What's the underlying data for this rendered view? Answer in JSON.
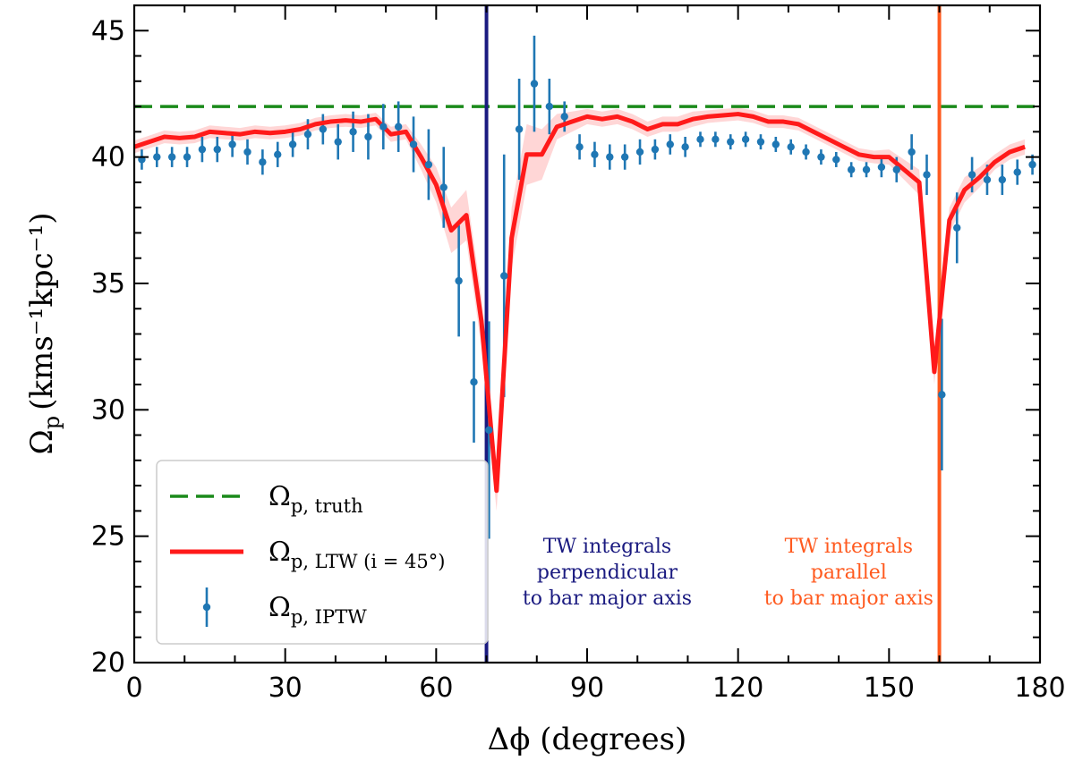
{
  "chart_data": {
    "type": "line",
    "xlabel": "Δϕ (degrees)",
    "ylabel": "Ω",
    "ylabel_sub": "p",
    "ylabel_units": "(kms⁻¹kpc⁻¹)",
    "xlim": [
      0,
      180
    ],
    "ylim": [
      20,
      46
    ],
    "xticks": [
      0,
      30,
      60,
      90,
      120,
      150,
      180
    ],
    "yticks": [
      20,
      25,
      30,
      35,
      40,
      45
    ],
    "xtick_labels": [
      "0",
      "30",
      "60",
      "90",
      "120",
      "150",
      "180"
    ],
    "ytick_labels": [
      "20",
      "25",
      "30",
      "35",
      "40",
      "45"
    ],
    "grid": false,
    "legend_position": "lower-left",
    "reference_lines": [
      {
        "name": "Ωp, truth",
        "orientation": "horizontal",
        "value": 42,
        "color": "#1a8a1a",
        "style": "dashed"
      },
      {
        "name": "perpendicular",
        "orientation": "vertical",
        "value": 70,
        "color": "#1a1a80",
        "style": "solid"
      },
      {
        "name": "parallel",
        "orientation": "vertical",
        "value": 160,
        "color": "#ff5a1f",
        "style": "solid"
      }
    ],
    "series": [
      {
        "name": "Ωp, LTW (i = 45°)",
        "color": "#ff1a1a",
        "band_color": "#ffd6d6",
        "x": [
          0,
          3,
          6,
          9,
          12,
          15,
          18,
          21,
          24,
          27,
          30,
          33,
          36,
          39,
          42,
          45,
          48,
          51,
          54,
          57,
          60,
          63,
          66,
          69,
          72,
          75,
          78,
          81,
          84,
          87,
          90,
          93,
          96,
          99,
          102,
          105,
          108,
          111,
          114,
          117,
          120,
          123,
          126,
          129,
          132,
          135,
          138,
          141,
          144,
          147,
          150,
          153,
          156,
          159,
          162,
          165,
          168,
          171,
          174,
          177
        ],
        "y": [
          40.4,
          40.6,
          40.8,
          40.75,
          40.8,
          41.0,
          40.95,
          40.9,
          41.0,
          40.95,
          41.0,
          41.1,
          41.3,
          41.4,
          41.45,
          41.4,
          41.5,
          40.9,
          41.0,
          40.0,
          38.9,
          37.1,
          37.7,
          33.5,
          26.8,
          36.8,
          40.1,
          40.1,
          41.2,
          41.4,
          41.6,
          41.5,
          41.6,
          41.4,
          41.1,
          41.3,
          41.3,
          41.5,
          41.6,
          41.65,
          41.7,
          41.6,
          41.4,
          41.4,
          41.3,
          41.0,
          40.7,
          40.4,
          40.1,
          40.0,
          40.0,
          39.5,
          39.0,
          31.5,
          37.5,
          38.7,
          39.2,
          39.8,
          40.2,
          40.4
        ],
        "band_halfwidth": [
          0.25,
          0.25,
          0.25,
          0.25,
          0.25,
          0.25,
          0.25,
          0.25,
          0.25,
          0.25,
          0.25,
          0.25,
          0.25,
          0.25,
          0.25,
          0.25,
          0.25,
          0.3,
          0.3,
          0.5,
          0.7,
          0.9,
          1.0,
          1.0,
          0.8,
          1.2,
          1.2,
          1.0,
          0.5,
          0.4,
          0.3,
          0.3,
          0.3,
          0.3,
          0.3,
          0.3,
          0.3,
          0.3,
          0.25,
          0.25,
          0.25,
          0.25,
          0.25,
          0.25,
          0.25,
          0.25,
          0.25,
          0.25,
          0.25,
          0.25,
          0.3,
          0.4,
          0.5,
          0.5,
          0.5,
          0.5,
          0.4,
          0.3,
          0.3,
          0.3
        ]
      },
      {
        "name": "Ωp, IPTW",
        "color": "#1f77b4",
        "x": [
          1.5,
          4.5,
          7.5,
          10.5,
          13.5,
          16.5,
          19.5,
          22.5,
          25.5,
          28.5,
          31.5,
          34.5,
          37.5,
          40.5,
          43.5,
          46.5,
          49.5,
          52.5,
          55.5,
          58.5,
          61.5,
          64.5,
          67.5,
          70.5,
          73.5,
          76.5,
          79.5,
          82.5,
          85.5,
          88.5,
          91.5,
          94.5,
          97.5,
          100.5,
          103.5,
          106.5,
          109.5,
          112.5,
          115.5,
          118.5,
          121.5,
          124.5,
          127.5,
          130.5,
          133.5,
          136.5,
          139.5,
          142.5,
          145.5,
          148.5,
          151.5,
          154.5,
          157.5,
          160.5,
          163.5,
          166.5,
          169.5,
          172.5,
          175.5,
          178.5
        ],
        "y": [
          39.9,
          40.0,
          40.0,
          40.0,
          40.3,
          40.3,
          40.5,
          40.2,
          39.8,
          40.1,
          40.5,
          40.9,
          41.1,
          40.6,
          41.0,
          40.8,
          41.2,
          41.2,
          40.5,
          39.7,
          38.8,
          35.1,
          31.1,
          29.2,
          35.3,
          41.1,
          42.9,
          42.0,
          41.6,
          40.4,
          40.1,
          40.0,
          40.0,
          40.2,
          40.3,
          40.5,
          40.4,
          40.7,
          40.7,
          40.6,
          40.7,
          40.6,
          40.5,
          40.4,
          40.2,
          40.0,
          39.9,
          39.5,
          39.5,
          39.6,
          39.5,
          40.2,
          39.3,
          30.6,
          37.2,
          39.3,
          39.1,
          39.1,
          39.4,
          39.7
        ],
        "err": [
          0.4,
          0.4,
          0.4,
          0.4,
          0.5,
          0.5,
          0.5,
          0.5,
          0.5,
          0.5,
          0.5,
          0.6,
          0.6,
          0.7,
          0.8,
          0.9,
          0.9,
          1.0,
          1.1,
          1.4,
          1.6,
          2.2,
          2.4,
          4.3,
          4.8,
          2.0,
          1.9,
          1.1,
          0.6,
          0.5,
          0.5,
          0.5,
          0.5,
          0.5,
          0.4,
          0.4,
          0.4,
          0.3,
          0.3,
          0.3,
          0.3,
          0.3,
          0.3,
          0.3,
          0.3,
          0.3,
          0.3,
          0.3,
          0.3,
          0.4,
          0.5,
          0.7,
          0.8,
          3.0,
          1.4,
          0.7,
          0.6,
          0.6,
          0.5,
          0.4
        ]
      }
    ],
    "legend": {
      "entries": [
        {
          "label": "Ω",
          "sub": "p, truth",
          "marker": "dashed-line",
          "color": "#1a8a1a"
        },
        {
          "label": "Ω",
          "sub": "p, LTW (i = 45°)",
          "marker": "solid-line",
          "color": "#ff1a1a"
        },
        {
          "label": "Ω",
          "sub": "p, IPTW",
          "marker": "errorbar-point",
          "color": "#1f77b4"
        }
      ]
    },
    "annotations": [
      {
        "lines": [
          "TW integrals",
          "perpendicular",
          "to bar major axis"
        ],
        "color": "#1a1a80",
        "x": 94,
        "y": 22.3
      },
      {
        "lines": [
          "TW integrals",
          "parallel",
          "to bar major axis"
        ],
        "color": "#ff5a1f",
        "x": 142,
        "y": 22.3
      }
    ]
  }
}
